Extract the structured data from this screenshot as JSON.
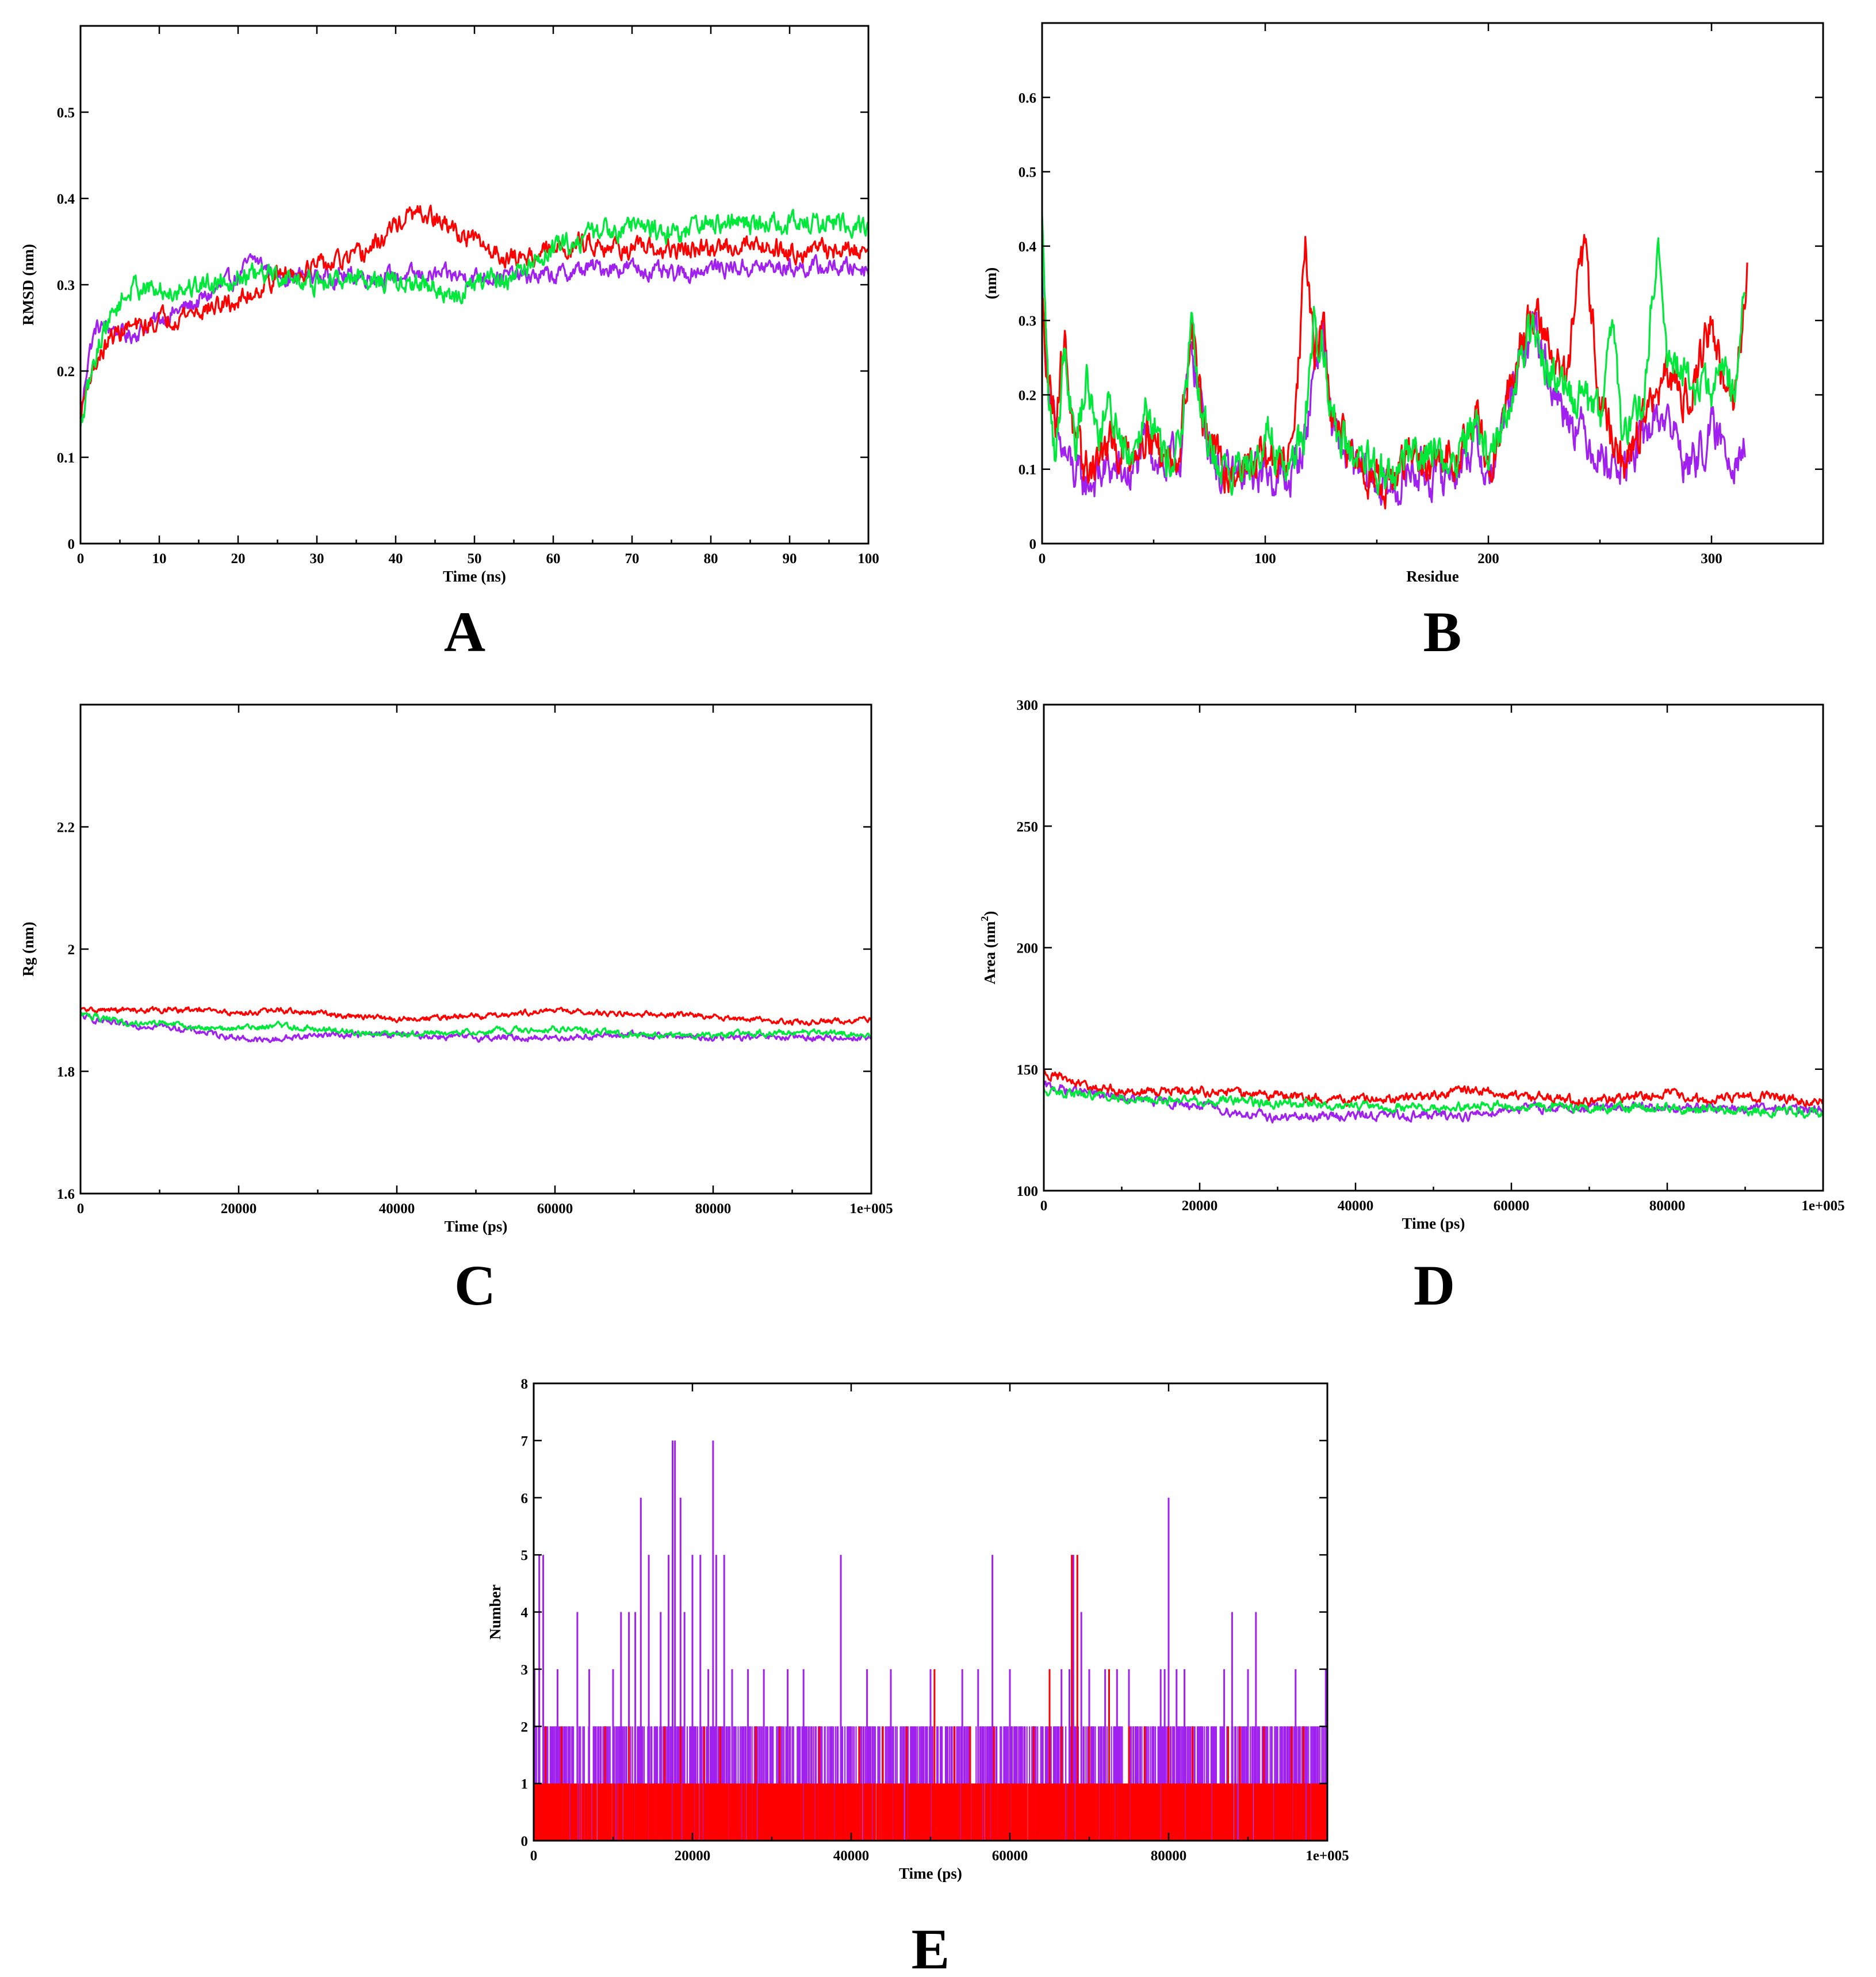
{
  "colors": {
    "purple": "#a020f0",
    "red": "#ff0000",
    "green": "#00e83a"
  },
  "chart_data": [
    {
      "panel": "A",
      "type": "line",
      "xlabel": "Time (ns)",
      "ylabel": "RMSD (nm)",
      "xlim": [
        0,
        100
      ],
      "ylim": [
        0,
        0.6
      ],
      "xticks": [
        "0",
        "10",
        "20",
        "30",
        "40",
        "50",
        "60",
        "70",
        "80",
        "90",
        "100"
      ],
      "yticks": [
        "0",
        "0.1",
        "0.2",
        "0.3",
        "0.4",
        "0.5"
      ],
      "series": [
        {
          "name": "purple",
          "color": "#a020f0",
          "noise": 0.008,
          "x": [
            0,
            1,
            2,
            4,
            6,
            8,
            10,
            15,
            20,
            22,
            25,
            30,
            35,
            40,
            45,
            50,
            55,
            60,
            65,
            70,
            75,
            80,
            85,
            90,
            95,
            100
          ],
          "y": [
            0.14,
            0.22,
            0.25,
            0.25,
            0.24,
            0.25,
            0.26,
            0.28,
            0.31,
            0.33,
            0.31,
            0.31,
            0.31,
            0.31,
            0.31,
            0.31,
            0.31,
            0.31,
            0.32,
            0.32,
            0.31,
            0.32,
            0.32,
            0.32,
            0.32,
            0.32
          ]
        },
        {
          "name": "red",
          "color": "#ff0000",
          "noise": 0.009,
          "x": [
            0,
            1,
            2,
            4,
            6,
            8,
            10,
            15,
            20,
            25,
            30,
            35,
            38,
            40,
            42,
            44,
            46,
            48,
            50,
            52,
            55,
            60,
            65,
            70,
            75,
            80,
            85,
            90,
            95,
            100
          ],
          "y": [
            0.15,
            0.19,
            0.21,
            0.24,
            0.25,
            0.25,
            0.26,
            0.27,
            0.28,
            0.31,
            0.32,
            0.33,
            0.35,
            0.37,
            0.38,
            0.38,
            0.37,
            0.36,
            0.35,
            0.34,
            0.33,
            0.34,
            0.35,
            0.34,
            0.34,
            0.34,
            0.35,
            0.34,
            0.34,
            0.34
          ]
        },
        {
          "name": "green",
          "color": "#00e83a",
          "noise": 0.01,
          "x": [
            0,
            1,
            2,
            3,
            5,
            7,
            10,
            15,
            20,
            25,
            30,
            35,
            40,
            45,
            47,
            50,
            55,
            60,
            65,
            70,
            75,
            80,
            85,
            90,
            95,
            100
          ],
          "y": [
            0.13,
            0.18,
            0.22,
            0.25,
            0.28,
            0.3,
            0.29,
            0.3,
            0.31,
            0.31,
            0.3,
            0.31,
            0.3,
            0.3,
            0.28,
            0.3,
            0.31,
            0.34,
            0.36,
            0.37,
            0.36,
            0.37,
            0.37,
            0.37,
            0.37,
            0.37
          ]
        }
      ]
    },
    {
      "panel": "B",
      "type": "line",
      "xlabel": "Residue",
      "ylabel": "(nm)",
      "xlim": [
        0,
        350
      ],
      "ylim": [
        0,
        0.7
      ],
      "xticks": [
        "0",
        "100",
        "200",
        "300"
      ],
      "yticks": [
        "0",
        "0.1",
        "0.2",
        "0.3",
        "0.4",
        "0.5",
        "0.6"
      ],
      "series": [
        {
          "name": "purple",
          "color": "#a020f0",
          "noise": 0.022,
          "x": [
            0,
            3,
            6,
            10,
            15,
            20,
            30,
            40,
            47,
            55,
            62,
            67,
            72,
            80,
            90,
            100,
            110,
            118,
            122,
            126,
            130,
            140,
            150,
            158,
            165,
            175,
            185,
            195,
            200,
            210,
            215,
            220,
            230,
            240,
            250,
            260,
            270,
            275,
            280,
            290,
            300,
            305,
            310,
            315
          ],
          "y": [
            0.35,
            0.22,
            0.14,
            0.12,
            0.09,
            0.08,
            0.1,
            0.09,
            0.14,
            0.1,
            0.12,
            0.27,
            0.17,
            0.09,
            0.09,
            0.1,
            0.08,
            0.14,
            0.24,
            0.29,
            0.15,
            0.1,
            0.08,
            0.07,
            0.1,
            0.09,
            0.1,
            0.14,
            0.08,
            0.2,
            0.25,
            0.3,
            0.2,
            0.16,
            0.12,
            0.1,
            0.14,
            0.17,
            0.17,
            0.1,
            0.15,
            0.13,
            0.12,
            0.13
          ]
        },
        {
          "name": "red",
          "color": "#ff0000",
          "noise": 0.022,
          "x": [
            0,
            3,
            6,
            10,
            15,
            20,
            30,
            40,
            47,
            55,
            62,
            67,
            72,
            80,
            90,
            100,
            110,
            115,
            118,
            122,
            126,
            130,
            140,
            150,
            158,
            165,
            175,
            185,
            195,
            200,
            210,
            215,
            220,
            230,
            235,
            240,
            243,
            250,
            260,
            270,
            275,
            280,
            285,
            290,
            300,
            305,
            310,
            314,
            316
          ],
          "y": [
            0.32,
            0.22,
            0.17,
            0.28,
            0.12,
            0.1,
            0.13,
            0.12,
            0.16,
            0.11,
            0.13,
            0.3,
            0.17,
            0.1,
            0.1,
            0.12,
            0.1,
            0.25,
            0.4,
            0.25,
            0.3,
            0.15,
            0.12,
            0.09,
            0.08,
            0.12,
            0.1,
            0.12,
            0.18,
            0.09,
            0.22,
            0.28,
            0.31,
            0.25,
            0.22,
            0.34,
            0.4,
            0.2,
            0.1,
            0.17,
            0.2,
            0.22,
            0.21,
            0.2,
            0.3,
            0.22,
            0.18,
            0.3,
            0.38
          ]
        },
        {
          "name": "green",
          "color": "#00e83a",
          "noise": 0.022,
          "x": [
            0,
            3,
            6,
            10,
            15,
            20,
            25,
            30,
            40,
            47,
            55,
            62,
            67,
            72,
            80,
            90,
            100,
            110,
            118,
            122,
            126,
            130,
            140,
            150,
            158,
            165,
            175,
            185,
            195,
            200,
            210,
            215,
            220,
            230,
            240,
            250,
            255,
            260,
            270,
            273,
            276,
            280,
            290,
            300,
            305,
            310,
            315
          ],
          "y": [
            0.43,
            0.18,
            0.12,
            0.27,
            0.14,
            0.22,
            0.15,
            0.18,
            0.12,
            0.2,
            0.11,
            0.14,
            0.28,
            0.16,
            0.1,
            0.1,
            0.15,
            0.1,
            0.16,
            0.3,
            0.27,
            0.17,
            0.1,
            0.1,
            0.09,
            0.13,
            0.12,
            0.11,
            0.17,
            0.1,
            0.2,
            0.26,
            0.28,
            0.22,
            0.2,
            0.16,
            0.3,
            0.15,
            0.2,
            0.32,
            0.42,
            0.24,
            0.22,
            0.2,
            0.25,
            0.18,
            0.34
          ]
        }
      ]
    },
    {
      "panel": "C",
      "type": "line",
      "xlabel": "Time (ps)",
      "ylabel": "Rg (nm)",
      "xlim": [
        0,
        100000
      ],
      "ylim": [
        1.6,
        2.4
      ],
      "xticks": [
        "0",
        "20000",
        "40000",
        "60000",
        "80000",
        "1e+005"
      ],
      "yticks": [
        "1.6",
        "1.8",
        "2",
        "2.2"
      ],
      "series": [
        {
          "name": "purple",
          "color": "#a020f0",
          "noise": 0.004,
          "x": [
            0,
            5000,
            10000,
            15000,
            20000,
            23000,
            30000,
            40000,
            50000,
            60000,
            70000,
            80000,
            90000,
            100000
          ],
          "y": [
            1.89,
            1.875,
            1.875,
            1.865,
            1.855,
            1.85,
            1.86,
            1.86,
            1.855,
            1.855,
            1.86,
            1.855,
            1.855,
            1.855
          ]
        },
        {
          "name": "red",
          "color": "#ff0000",
          "noise": 0.0035,
          "x": [
            0,
            5000,
            10000,
            15000,
            20000,
            25000,
            30000,
            40000,
            50000,
            55000,
            60000,
            65000,
            70000,
            80000,
            90000,
            100000
          ],
          "y": [
            1.9,
            1.9,
            1.9,
            1.9,
            1.895,
            1.9,
            1.895,
            1.885,
            1.89,
            1.895,
            1.9,
            1.895,
            1.895,
            1.89,
            1.88,
            1.885
          ]
        },
        {
          "name": "green",
          "color": "#00e83a",
          "noise": 0.004,
          "x": [
            0,
            5000,
            10000,
            15000,
            20000,
            25000,
            30000,
            40000,
            50000,
            60000,
            70000,
            80000,
            90000,
            100000
          ],
          "y": [
            1.895,
            1.88,
            1.88,
            1.87,
            1.87,
            1.875,
            1.87,
            1.86,
            1.865,
            1.87,
            1.86,
            1.86,
            1.865,
            1.86
          ]
        }
      ]
    },
    {
      "panel": "D",
      "type": "line",
      "xlabel": "Time (ps)",
      "ylabel": "Area (nm²)",
      "ylabel_main": "Area (nm",
      "ylabel_sup": "2",
      "ylabel_close": ")",
      "xlim": [
        0,
        100000
      ],
      "ylim": [
        100,
        300
      ],
      "xticks": [
        "0",
        "20000",
        "40000",
        "60000",
        "80000",
        "1e+005"
      ],
      "yticks": [
        "100",
        "150",
        "200",
        "250",
        "300"
      ],
      "series": [
        {
          "name": "purple",
          "color": "#a020f0",
          "noise": 1.5,
          "x": [
            0,
            10000,
            20000,
            25000,
            30000,
            40000,
            50000,
            55000,
            60000,
            70000,
            80000,
            90000,
            100000
          ],
          "y": [
            143,
            138,
            135,
            132,
            130,
            131,
            131,
            131,
            134,
            134,
            134,
            134,
            133
          ]
        },
        {
          "name": "red",
          "color": "#ff0000",
          "noise": 1.5,
          "x": [
            0,
            5000,
            10000,
            20000,
            30000,
            40000,
            50000,
            55000,
            60000,
            70000,
            80000,
            85000,
            90000,
            100000
          ],
          "y": [
            149,
            143,
            141,
            141,
            139,
            137,
            139,
            142,
            139,
            137,
            140,
            137,
            139,
            137
          ]
        },
        {
          "name": "green",
          "color": "#00e83a",
          "noise": 1.5,
          "x": [
            0,
            10000,
            20000,
            30000,
            40000,
            50000,
            60000,
            70000,
            80000,
            90000,
            100000
          ],
          "y": [
            141,
            138,
            137,
            136,
            135,
            134,
            135,
            134,
            134,
            133,
            132
          ]
        }
      ]
    },
    {
      "panel": "E",
      "type": "bar",
      "xlabel": "Time (ps)",
      "ylabel": "Number",
      "xlim": [
        0,
        100000
      ],
      "ylim": [
        0,
        8
      ],
      "xticks": [
        "0",
        "20000",
        "40000",
        "60000",
        "80000",
        "1e+005"
      ],
      "yticks": [
        "0",
        "1",
        "2",
        "3",
        "4",
        "5",
        "6",
        "7",
        "8"
      ],
      "series": [
        {
          "name": "purple",
          "color": "#a020f0",
          "x": [
            100,
            700,
            1200,
            3000,
            5500,
            7000,
            10000,
            11000,
            12000,
            12800,
            13500,
            14500,
            16000,
            17000,
            17500,
            17800,
            18500,
            19000,
            20000,
            21000,
            22000,
            22600,
            23000,
            24000,
            25000,
            27000,
            29000,
            32000,
            34000,
            36000,
            38700,
            42000,
            45000,
            48000,
            50000,
            52000,
            54000,
            56000,
            57800,
            60000,
            63000,
            65000,
            66500,
            67500,
            68000,
            69000,
            70000,
            72000,
            73500,
            75000,
            78000,
            79000,
            79500,
            80000,
            81000,
            82000,
            84000,
            87000,
            88000,
            90000,
            91000,
            93000,
            96000,
            97000,
            98000,
            99800
          ],
          "y": [
            3,
            5,
            5,
            3,
            4,
            3,
            3,
            4,
            4,
            4,
            6,
            5,
            4,
            5,
            7,
            7,
            6,
            4,
            5,
            5,
            3,
            7,
            5,
            5,
            3,
            3,
            3,
            3,
            3,
            2,
            5,
            3,
            3,
            2,
            3,
            2,
            3,
            3,
            5,
            3,
            2,
            3,
            3,
            3,
            5,
            4,
            3,
            3,
            3,
            3,
            2,
            3,
            3,
            6,
            3,
            3,
            2,
            3,
            4,
            3,
            4,
            2,
            3,
            2,
            2,
            3
          ]
        },
        {
          "name": "red",
          "color": "#ff0000",
          "x": [
            300,
            1500,
            2500,
            3500,
            5000,
            9000,
            12000,
            14000,
            16500,
            18500,
            20000,
            21500,
            23500,
            26000,
            28000,
            31000,
            33000,
            36000,
            39000,
            41000,
            44000,
            47000,
            49000,
            50500,
            53000,
            55000,
            58000,
            61000,
            63000,
            65000,
            66500,
            67800,
            68500,
            70000,
            72500,
            75000,
            77000,
            80000,
            83000,
            85000,
            87500,
            89000,
            92000,
            94000,
            95500,
            97000,
            99000
          ],
          "y": [
            1,
            2,
            1,
            2,
            1,
            2,
            2,
            1,
            2,
            2,
            1,
            2,
            2,
            1,
            2,
            2,
            1,
            2,
            1,
            2,
            2,
            2,
            1,
            3,
            2,
            2,
            2,
            1,
            2,
            3,
            2,
            5,
            5,
            2,
            3,
            2,
            2,
            2,
            2,
            1,
            2,
            2,
            2,
            1,
            2,
            2,
            1
          ]
        }
      ]
    }
  ]
}
